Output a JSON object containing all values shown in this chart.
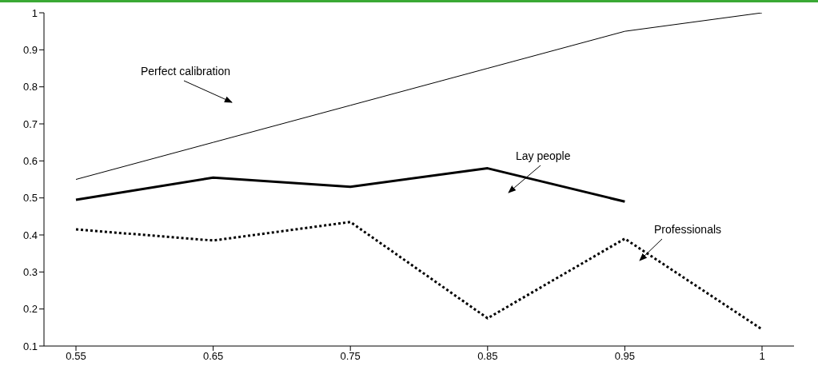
{
  "chart_data": {
    "type": "line",
    "categories": [
      "0.55",
      "0.65",
      "0.75",
      "0.85",
      "0.95",
      "1"
    ],
    "series": [
      {
        "color": "#000000",
        "line_style": "solid",
        "values": [
          0.55,
          0.65,
          0.75,
          0.85,
          0.95,
          1
        ]
      },
      {
        "color": "#000000",
        "line_style": "solid",
        "values": [
          0.495,
          0.555,
          0.53,
          0.58,
          0.49,
          null
        ]
      },
      {
        "color": "#000000",
        "line_style": "dotted",
        "values": [
          0.415,
          0.385,
          0.435,
          0.175,
          0.39,
          0.145
        ]
      }
    ],
    "ylim": [
      0.1,
      1
    ],
    "yticks": [
      0.1,
      0.2,
      0.3,
      0.4,
      0.5,
      0.6,
      0.7,
      0.8,
      0.9,
      1
    ],
    "annotations": [
      "Perfect calibration",
      "Lay people",
      "Professionals"
    ],
    "grid": false,
    "legend": false,
    "marker": "none"
  }
}
